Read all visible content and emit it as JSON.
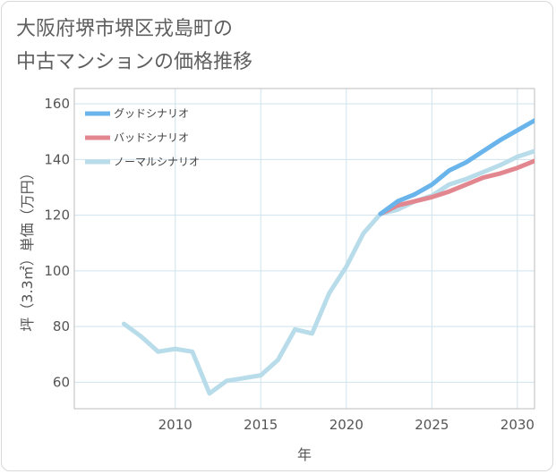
{
  "title": {
    "line1": "大阪府堺市堺区戎島町の",
    "line2": "中古マンションの価格推移"
  },
  "chart_data": {
    "type": "line",
    "xlabel": "年",
    "ylabel": "坪（3.3㎡）単価（万円）",
    "xlim": [
      2004.1,
      2031
    ],
    "ylim": [
      50.5,
      165.5
    ],
    "xticks": [
      2010,
      2015,
      2020,
      2025,
      2030
    ],
    "yticks": [
      60,
      80,
      100,
      120,
      140,
      160
    ],
    "grid": true,
    "legend_position": "top-left",
    "series": [
      {
        "name": "グッドシナリオ",
        "color": "#6ab4ec",
        "x": [
          2022,
          2023,
          2024,
          2025,
          2026,
          2027,
          2028,
          2029,
          2030,
          2031
        ],
        "y": [
          120.5,
          125,
          127.5,
          131,
          136,
          139,
          143,
          147,
          150.5,
          154
        ]
      },
      {
        "name": "バッドシナリオ",
        "color": "#e2868f",
        "x": [
          2022,
          2023,
          2024,
          2025,
          2026,
          2027,
          2028,
          2029,
          2030,
          2031
        ],
        "y": [
          120.5,
          123.5,
          125,
          126.5,
          128.5,
          131,
          133.5,
          135,
          137,
          139.5
        ]
      },
      {
        "name": "ノーマルシナリオ",
        "color": "#b8dcea",
        "x": [
          2007,
          2008,
          2009,
          2010,
          2011,
          2012,
          2013,
          2014,
          2015,
          2016,
          2017,
          2018,
          2019,
          2020,
          2021,
          2022,
          2023,
          2024,
          2025,
          2026,
          2027,
          2028,
          2029,
          2030,
          2031
        ],
        "y": [
          81,
          76.5,
          71,
          72,
          71,
          56,
          60.5,
          61.5,
          62.5,
          68,
          79,
          77.5,
          92,
          101.5,
          113.5,
          120.5,
          122,
          125,
          127,
          131,
          133,
          135.5,
          138,
          141,
          143
        ]
      }
    ]
  }
}
